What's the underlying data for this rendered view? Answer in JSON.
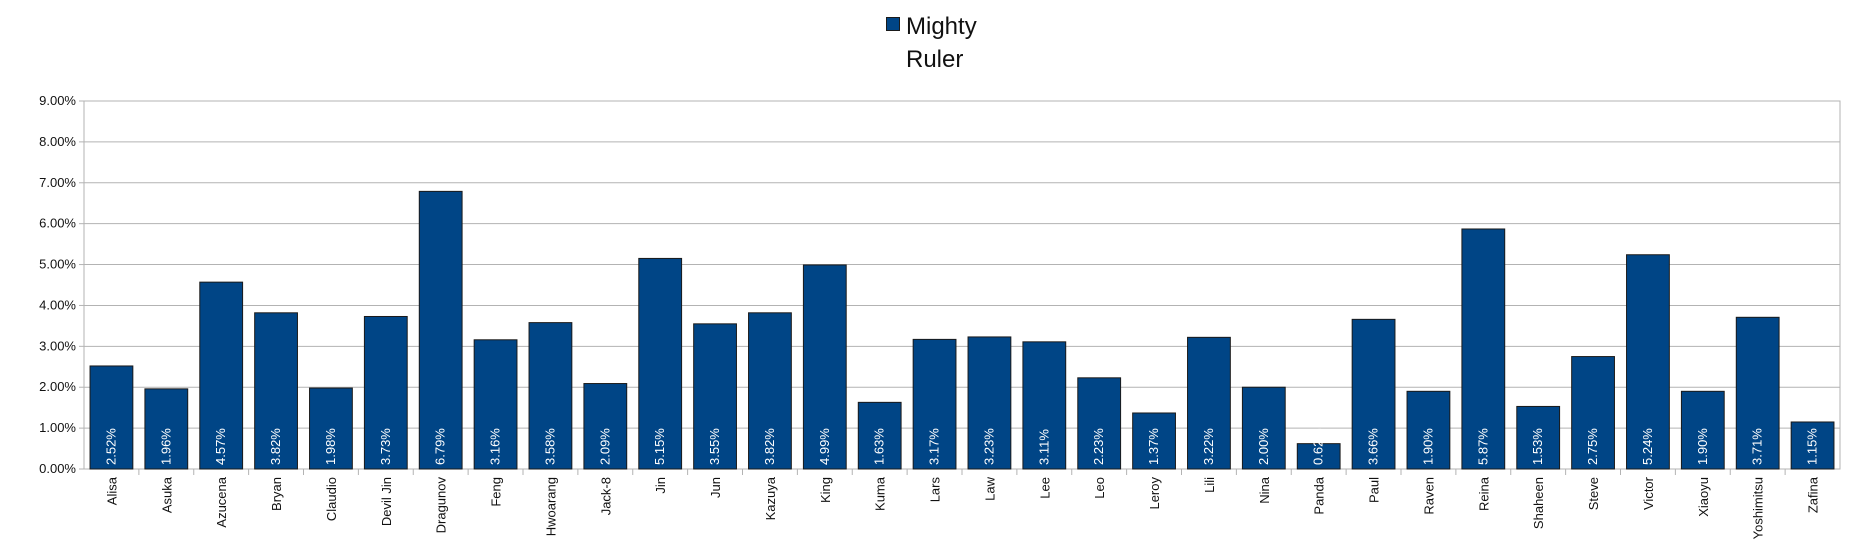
{
  "chart_data": {
    "type": "bar",
    "title": "",
    "xlabel": "",
    "ylabel": "",
    "ylim": [
      0,
      9
    ],
    "y_tick_format": "percent_2dp",
    "y_ticks": [
      "0.00%",
      "1.00%",
      "2.00%",
      "3.00%",
      "4.00%",
      "5.00%",
      "6.00%",
      "7.00%",
      "8.00%",
      "9.00%"
    ],
    "grid": true,
    "legend_position": "top-center",
    "categories": [
      "Alisa",
      "Asuka",
      "Azucena",
      "Bryan",
      "Claudio",
      "Devil Jin",
      "Dragunov",
      "Feng",
      "Hwoarang",
      "Jack-8",
      "Jin",
      "Jun",
      "Kazuya",
      "King",
      "Kuma",
      "Lars",
      "Law",
      "Lee",
      "Leo",
      "Leroy",
      "Lili",
      "Nina",
      "Panda",
      "Paul",
      "Raven",
      "Reina",
      "Shaheen",
      "Steve",
      "Victor",
      "Xiaoyu",
      "Yoshimitsu",
      "Zafina"
    ],
    "series": [
      {
        "name": "Mighty Ruler",
        "color": "#004586",
        "values": [
          2.52,
          1.96,
          4.57,
          3.82,
          1.98,
          3.73,
          6.79,
          3.16,
          3.58,
          2.09,
          5.15,
          3.55,
          3.82,
          4.99,
          1.63,
          3.17,
          3.23,
          3.11,
          2.23,
          1.37,
          3.22,
          2.0,
          0.62,
          3.66,
          1.9,
          5.87,
          1.53,
          2.75,
          5.24,
          1.9,
          3.71,
          1.15
        ],
        "labels": [
          "2.52%",
          "1.96%",
          "4.57%",
          "3.82%",
          "1.98%",
          "3.73%",
          "6.79%",
          "3.16%",
          "3.58%",
          "2.09%",
          "5.15%",
          "3.55%",
          "3.82%",
          "4.99%",
          "1.63%",
          "3.17%",
          "3.23%",
          "3.11%",
          "2.23%",
          "1.37%",
          "3.22%",
          "2.00%",
          "0.62%",
          "3.66%",
          "1.90%",
          "5.87%",
          "1.53%",
          "2.75%",
          "5.24%",
          "1.90%",
          "3.71%",
          "1.15%"
        ]
      }
    ]
  }
}
